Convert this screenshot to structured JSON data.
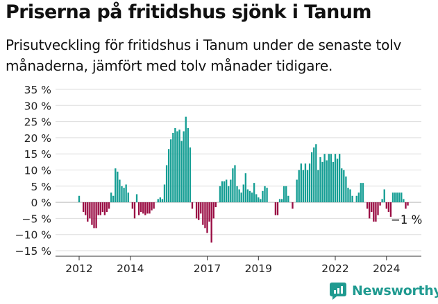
{
  "title": "Priserna på fritidshus sjönk i Tanum",
  "subtitle": "Prisutveckling för fritidshus i Tanum under de senaste tolv månaderna, jämfört med tolv månader tidigare.",
  "brand": "Newsworthy",
  "colors": {
    "positive": "#159e94",
    "negative": "#9a0e44",
    "grid": "#dddddd",
    "brand": "#1f9a90"
  },
  "chart_data": {
    "type": "bar",
    "y_tick_labels": [
      "35 %",
      "30 %",
      "25 %",
      "20 %",
      "15 %",
      "10 %",
      "5 %",
      "0 %",
      "−5 %",
      "−10 %",
      "−15 %"
    ],
    "y_ticks": [
      35,
      30,
      25,
      20,
      15,
      10,
      5,
      0,
      -5,
      -10,
      -15
    ],
    "ylim": [
      -15,
      35
    ],
    "x_tick_labels": [
      "2012",
      "2014",
      "2017",
      "2019",
      "2022",
      "2024"
    ],
    "x_ticks": [
      2012.0,
      2014.0,
      2017.0,
      2019.0,
      2022.0,
      2024.0
    ],
    "xlim": [
      2011.5,
      2025.25
    ],
    "annotation": "−1 %",
    "bar_width_years": 0.0633,
    "series": [
      {
        "values": [
          {
            "x": 2012.0,
            "y": 2
          },
          {
            "x": 2012.083,
            "y": 0
          },
          {
            "x": 2012.167,
            "y": -3
          },
          {
            "x": 2012.25,
            "y": -4
          },
          {
            "x": 2012.333,
            "y": -6
          },
          {
            "x": 2012.417,
            "y": -5
          },
          {
            "x": 2012.5,
            "y": -7
          },
          {
            "x": 2012.583,
            "y": -8
          },
          {
            "x": 2012.667,
            "y": -8
          },
          {
            "x": 2012.75,
            "y": -4
          },
          {
            "x": 2012.833,
            "y": -4
          },
          {
            "x": 2012.917,
            "y": -3
          },
          {
            "x": 2013.0,
            "y": -4
          },
          {
            "x": 2013.083,
            "y": -3
          },
          {
            "x": 2013.167,
            "y": -2
          },
          {
            "x": 2013.25,
            "y": 3
          },
          {
            "x": 2013.333,
            "y": 2
          },
          {
            "x": 2013.417,
            "y": 10.5
          },
          {
            "x": 2013.5,
            "y": 9.5
          },
          {
            "x": 2013.583,
            "y": 7
          },
          {
            "x": 2013.667,
            "y": 5
          },
          {
            "x": 2013.75,
            "y": 4.5
          },
          {
            "x": 2013.833,
            "y": 5.5
          },
          {
            "x": 2013.917,
            "y": 3
          },
          {
            "x": 2014.0,
            "y": 0
          },
          {
            "x": 2014.083,
            "y": -2
          },
          {
            "x": 2014.167,
            "y": -5
          },
          {
            "x": 2014.25,
            "y": 2.5
          },
          {
            "x": 2014.333,
            "y": -4
          },
          {
            "x": 2014.417,
            "y": -3
          },
          {
            "x": 2014.5,
            "y": -3.5
          },
          {
            "x": 2014.583,
            "y": -4
          },
          {
            "x": 2014.667,
            "y": -3.5
          },
          {
            "x": 2014.75,
            "y": -3.5
          },
          {
            "x": 2014.833,
            "y": -2.5
          },
          {
            "x": 2014.917,
            "y": -2
          },
          {
            "x": 2015.0,
            "y": 0
          },
          {
            "x": 2015.083,
            "y": 1
          },
          {
            "x": 2015.167,
            "y": 1.5
          },
          {
            "x": 2015.25,
            "y": 1
          },
          {
            "x": 2015.333,
            "y": 5.5
          },
          {
            "x": 2015.417,
            "y": 11.5
          },
          {
            "x": 2015.5,
            "y": 16.5
          },
          {
            "x": 2015.583,
            "y": 19.5
          },
          {
            "x": 2015.667,
            "y": 21.5
          },
          {
            "x": 2015.75,
            "y": 23
          },
          {
            "x": 2015.833,
            "y": 22
          },
          {
            "x": 2015.917,
            "y": 22.5
          },
          {
            "x": 2016.0,
            "y": 19
          },
          {
            "x": 2016.083,
            "y": 22
          },
          {
            "x": 2016.167,
            "y": 26.5
          },
          {
            "x": 2016.25,
            "y": 23
          },
          {
            "x": 2016.333,
            "y": 17
          },
          {
            "x": 2016.417,
            "y": -2
          },
          {
            "x": 2016.5,
            "y": 0
          },
          {
            "x": 2016.583,
            "y": -5
          },
          {
            "x": 2016.667,
            "y": -5.5
          },
          {
            "x": 2016.75,
            "y": -3.5
          },
          {
            "x": 2016.833,
            "y": -7
          },
          {
            "x": 2016.917,
            "y": -8
          },
          {
            "x": 2017.0,
            "y": -9.5
          },
          {
            "x": 2017.083,
            "y": -6
          },
          {
            "x": 2017.167,
            "y": -12.5
          },
          {
            "x": 2017.25,
            "y": -5
          },
          {
            "x": 2017.333,
            "y": -1.5
          },
          {
            "x": 2017.417,
            "y": 0
          },
          {
            "x": 2017.5,
            "y": 5
          },
          {
            "x": 2017.583,
            "y": 6.5
          },
          {
            "x": 2017.667,
            "y": 6.5
          },
          {
            "x": 2017.75,
            "y": 7
          },
          {
            "x": 2017.833,
            "y": 5
          },
          {
            "x": 2017.917,
            "y": 7
          },
          {
            "x": 2018.0,
            "y": 10.5
          },
          {
            "x": 2018.083,
            "y": 11.5
          },
          {
            "x": 2018.167,
            "y": 5
          },
          {
            "x": 2018.25,
            "y": 4
          },
          {
            "x": 2018.333,
            "y": 3
          },
          {
            "x": 2018.417,
            "y": 5.5
          },
          {
            "x": 2018.5,
            "y": 9
          },
          {
            "x": 2018.583,
            "y": 4
          },
          {
            "x": 2018.667,
            "y": 3.5
          },
          {
            "x": 2018.75,
            "y": 3
          },
          {
            "x": 2018.833,
            "y": 6
          },
          {
            "x": 2018.917,
            "y": 2.5
          },
          {
            "x": 2019.0,
            "y": 1.5
          },
          {
            "x": 2019.083,
            "y": 1
          },
          {
            "x": 2019.167,
            "y": 3.5
          },
          {
            "x": 2019.25,
            "y": 5
          },
          {
            "x": 2019.333,
            "y": 4.5
          },
          {
            "x": 2019.417,
            "y": 0
          },
          {
            "x": 2019.5,
            "y": 0
          },
          {
            "x": 2019.583,
            "y": 0
          },
          {
            "x": 2019.667,
            "y": -4
          },
          {
            "x": 2019.75,
            "y": -4
          },
          {
            "x": 2019.833,
            "y": 1
          },
          {
            "x": 2019.917,
            "y": 1
          },
          {
            "x": 2020.0,
            "y": 5
          },
          {
            "x": 2020.083,
            "y": 5
          },
          {
            "x": 2020.167,
            "y": 2
          },
          {
            "x": 2020.25,
            "y": 0
          },
          {
            "x": 2020.333,
            "y": -2
          },
          {
            "x": 2020.417,
            "y": 0
          },
          {
            "x": 2020.5,
            "y": 7
          },
          {
            "x": 2020.583,
            "y": 10
          },
          {
            "x": 2020.667,
            "y": 12
          },
          {
            "x": 2020.75,
            "y": 10
          },
          {
            "x": 2020.833,
            "y": 12
          },
          {
            "x": 2020.917,
            "y": 10
          },
          {
            "x": 2021.0,
            "y": 12
          },
          {
            "x": 2021.083,
            "y": 15.5
          },
          {
            "x": 2021.167,
            "y": 17
          },
          {
            "x": 2021.25,
            "y": 18
          },
          {
            "x": 2021.333,
            "y": 10
          },
          {
            "x": 2021.417,
            "y": 14
          },
          {
            "x": 2021.5,
            "y": 12.5
          },
          {
            "x": 2021.583,
            "y": 15
          },
          {
            "x": 2021.667,
            "y": 13
          },
          {
            "x": 2021.75,
            "y": 15
          },
          {
            "x": 2021.833,
            "y": 15
          },
          {
            "x": 2021.917,
            "y": 12.5
          },
          {
            "x": 2022.0,
            "y": 15
          },
          {
            "x": 2022.083,
            "y": 13.5
          },
          {
            "x": 2022.167,
            "y": 15
          },
          {
            "x": 2022.25,
            "y": 10.5
          },
          {
            "x": 2022.333,
            "y": 10
          },
          {
            "x": 2022.417,
            "y": 8
          },
          {
            "x": 2022.5,
            "y": 4.5
          },
          {
            "x": 2022.583,
            "y": 4
          },
          {
            "x": 2022.667,
            "y": 2
          },
          {
            "x": 2022.75,
            "y": 0
          },
          {
            "x": 2022.833,
            "y": 2
          },
          {
            "x": 2022.917,
            "y": 3
          },
          {
            "x": 2023.0,
            "y": 6
          },
          {
            "x": 2023.083,
            "y": 6
          },
          {
            "x": 2023.167,
            "y": 0
          },
          {
            "x": 2023.25,
            "y": -2
          },
          {
            "x": 2023.333,
            "y": -5
          },
          {
            "x": 2023.417,
            "y": -3
          },
          {
            "x": 2023.5,
            "y": -6
          },
          {
            "x": 2023.583,
            "y": -6
          },
          {
            "x": 2023.667,
            "y": -4
          },
          {
            "x": 2023.75,
            "y": -1
          },
          {
            "x": 2023.833,
            "y": 1
          },
          {
            "x": 2023.917,
            "y": 4
          },
          {
            "x": 2024.0,
            "y": -2
          },
          {
            "x": 2024.083,
            "y": -3
          },
          {
            "x": 2024.167,
            "y": -4.5
          },
          {
            "x": 2024.25,
            "y": 3
          },
          {
            "x": 2024.333,
            "y": 3
          },
          {
            "x": 2024.417,
            "y": 3
          },
          {
            "x": 2024.5,
            "y": 3
          },
          {
            "x": 2024.583,
            "y": 3
          },
          {
            "x": 2024.667,
            "y": 1
          },
          {
            "x": 2024.75,
            "y": -2
          },
          {
            "x": 2024.833,
            "y": -1
          }
        ]
      }
    ]
  }
}
